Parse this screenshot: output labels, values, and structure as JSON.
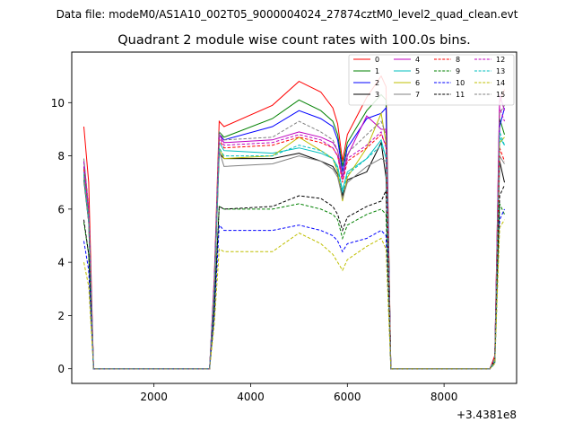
{
  "header": {
    "suptitle": "Data file: modeM0/AS1A10_002T05_9000004024_27874cztM0_level2_quad_clean.evt",
    "title": "Quadrant 2 module wise count rates with 100.0s bins."
  },
  "chart_data": {
    "type": "line",
    "title": "Quadrant 2 module wise count rates with 100.0s bins.",
    "xlabel": "",
    "ylabel": "",
    "x_offset_label": "+3.4381e8",
    "xlim": [
      300,
      9500
    ],
    "ylim": [
      -0.55,
      11.9
    ],
    "x_ticks": [
      2000,
      4000,
      6000,
      8000
    ],
    "y_ticks": [
      0,
      2,
      4,
      6,
      8,
      10
    ],
    "grid": false,
    "legend_position": "top-right",
    "x_knots": [
      550,
      650,
      750,
      3150,
      3250,
      3350,
      3450,
      4450,
      5000,
      5450,
      5700,
      5800,
      5900,
      6000,
      6400,
      6700,
      6800,
      6900,
      8950,
      9050,
      9150,
      9250
    ],
    "series": [
      {
        "name": "0",
        "color": "#ff0000",
        "dash": "solid",
        "values": [
          9.1,
          7.0,
          0,
          0,
          3.5,
          9.3,
          9.1,
          9.9,
          10.8,
          10.4,
          9.8,
          9.2,
          7.8,
          8.8,
          10.2,
          11.0,
          10.6,
          0,
          0,
          0.5,
          10.0,
          10.5
        ]
      },
      {
        "name": "1",
        "color": "#008000",
        "dash": "solid",
        "values": [
          7.6,
          5.8,
          0,
          0,
          3.2,
          8.9,
          8.7,
          9.4,
          10.1,
          9.7,
          9.3,
          8.8,
          7.6,
          8.5,
          9.7,
          10.3,
          10.1,
          0,
          0,
          0.4,
          9.4,
          8.8
        ]
      },
      {
        "name": "2",
        "color": "#0000ff",
        "dash": "solid",
        "values": [
          7.8,
          6.0,
          0,
          0,
          3.3,
          8.8,
          8.6,
          9.1,
          9.7,
          9.4,
          9.1,
          8.6,
          7.4,
          8.3,
          9.4,
          9.6,
          9.8,
          0,
          0,
          0.4,
          9.1,
          9.8
        ]
      },
      {
        "name": "3",
        "color": "#000000",
        "dash": "solid",
        "values": [
          7.1,
          5.5,
          0,
          0,
          2.9,
          8.1,
          7.9,
          7.9,
          8.1,
          7.8,
          7.6,
          7.3,
          6.5,
          7.1,
          7.4,
          8.5,
          7.2,
          0,
          0,
          0.3,
          7.8,
          7.0
        ]
      },
      {
        "name": "4",
        "color": "#bf00bf",
        "dash": "solid",
        "values": [
          7.8,
          6.0,
          0,
          0,
          3.3,
          8.8,
          8.5,
          8.6,
          8.9,
          8.7,
          8.5,
          8.2,
          7.2,
          8.0,
          9.5,
          9.0,
          9.0,
          0,
          0,
          0.4,
          10.3,
          9.7
        ]
      },
      {
        "name": "5",
        "color": "#00bfbf",
        "dash": "solid",
        "values": [
          7.4,
          5.7,
          0,
          0,
          3.1,
          8.5,
          8.2,
          8.1,
          8.3,
          8.1,
          7.9,
          7.6,
          6.7,
          7.4,
          7.9,
          8.6,
          7.9,
          0,
          0,
          0.3,
          8.7,
          8.4
        ]
      },
      {
        "name": "6",
        "color": "#bfbf00",
        "dash": "solid",
        "values": [
          7.3,
          5.6,
          0,
          0,
          3.0,
          8.3,
          7.9,
          8.0,
          8.7,
          8.2,
          7.9,
          7.4,
          6.3,
          7.2,
          8.3,
          9.6,
          8.5,
          0,
          0,
          0.3,
          8.5,
          8.7
        ]
      },
      {
        "name": "7",
        "color": "#808080",
        "dash": "solid",
        "values": [
          7.2,
          5.5,
          0,
          0,
          3.0,
          8.2,
          7.6,
          7.7,
          8.0,
          7.8,
          7.5,
          7.2,
          6.4,
          7.0,
          7.6,
          7.9,
          7.8,
          0,
          0,
          0.3,
          8.0,
          7.7
        ]
      },
      {
        "name": "8",
        "color": "#ff0000",
        "dash": "dashed",
        "values": [
          7.5,
          5.8,
          0,
          0,
          3.1,
          8.6,
          8.3,
          8.4,
          8.7,
          8.5,
          8.3,
          8.0,
          7.0,
          7.8,
          8.3,
          8.8,
          8.4,
          0,
          0,
          0.4,
          8.3,
          7.8
        ]
      },
      {
        "name": "9",
        "color": "#008000",
        "dash": "dashed",
        "values": [
          5.5,
          4.3,
          0,
          0,
          2.3,
          6.1,
          6.0,
          6.0,
          6.2,
          6.0,
          5.8,
          5.6,
          4.9,
          5.4,
          5.8,
          6.0,
          5.8,
          0,
          0,
          0.2,
          6.2,
          5.8
        ]
      },
      {
        "name": "10",
        "color": "#0000ff",
        "dash": "dashed",
        "values": [
          4.8,
          3.7,
          0,
          0,
          2.0,
          5.4,
          5.2,
          5.2,
          5.4,
          5.2,
          5.0,
          4.8,
          4.4,
          4.7,
          4.9,
          5.2,
          5.0,
          0,
          0,
          0.2,
          5.6,
          6.0
        ]
      },
      {
        "name": "11",
        "color": "#000000",
        "dash": "dashed",
        "values": [
          5.6,
          4.3,
          0,
          0,
          2.3,
          6.1,
          6.0,
          6.1,
          6.5,
          6.4,
          6.1,
          5.8,
          5.2,
          5.7,
          6.1,
          6.3,
          6.7,
          0,
          0,
          0.3,
          6.5,
          6.9
        ]
      },
      {
        "name": "12",
        "color": "#bf00bf",
        "dash": "dashed",
        "values": [
          7.6,
          5.9,
          0,
          0,
          3.2,
          8.7,
          8.4,
          8.5,
          8.8,
          8.6,
          8.3,
          8.0,
          7.1,
          7.9,
          8.4,
          8.9,
          8.3,
          0,
          0,
          0.4,
          9.8,
          9.3
        ]
      },
      {
        "name": "13",
        "color": "#00bfbf",
        "dash": "dashed",
        "values": [
          7.3,
          5.6,
          0,
          0,
          3.0,
          8.3,
          8.0,
          8.0,
          8.4,
          8.2,
          7.9,
          7.5,
          6.6,
          7.3,
          7.9,
          8.4,
          8.0,
          0,
          0,
          0.3,
          8.9,
          8.4
        ]
      },
      {
        "name": "14",
        "color": "#bfbf00",
        "dash": "dashed",
        "values": [
          4.0,
          3.1,
          0,
          0,
          1.7,
          4.5,
          4.4,
          4.4,
          5.1,
          4.7,
          4.3,
          4.0,
          3.7,
          4.1,
          4.6,
          4.9,
          4.5,
          0,
          0,
          0.2,
          5.3,
          5.6
        ]
      },
      {
        "name": "15",
        "color": "#808080",
        "dash": "dashed",
        "values": [
          7.9,
          6.1,
          0,
          0,
          3.3,
          8.9,
          8.6,
          8.7,
          9.3,
          8.9,
          8.6,
          8.2,
          7.3,
          8.1,
          8.8,
          9.3,
          8.8,
          0,
          0,
          0.4,
          9.6,
          9.9
        ]
      }
    ]
  }
}
